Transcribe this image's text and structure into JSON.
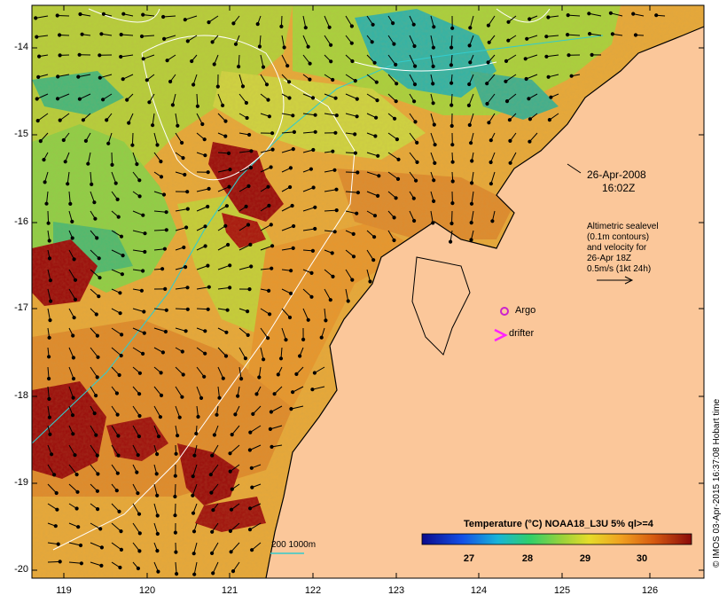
{
  "map": {
    "lon_ticks": [
      "119",
      "120",
      "121",
      "122",
      "123",
      "124",
      "125",
      "126"
    ],
    "lat_ticks": [
      "-14",
      "-15",
      "-16",
      "-17",
      "-18",
      "-19",
      "-20"
    ],
    "date_line1": "26-Apr-2008",
    "date_line2": "16:02Z",
    "altimetry_lines": [
      "Altimetric sealevel",
      "(0.1m contours)",
      "and velocity for",
      "26-Apr 18Z",
      "0.5m/s (1kt 24h)"
    ],
    "argo_label": "Argo",
    "drifter_label": "drifter",
    "isobath_label": "200  1000m",
    "colorbar_title": "Temperature (°C) NOAA18_L3U 5% ql>=4",
    "colorbar_ticks": [
      "27",
      "28",
      "29",
      "30"
    ],
    "credit": "© IMOS 03-Apr-2015 16:37:08 Hobart time",
    "colors": {
      "land": "#fbc79a",
      "argo": "#cc22cc",
      "drifter": "#ff22ff",
      "isobath": "#33cccc",
      "hot": "#9a0a0a"
    }
  }
}
